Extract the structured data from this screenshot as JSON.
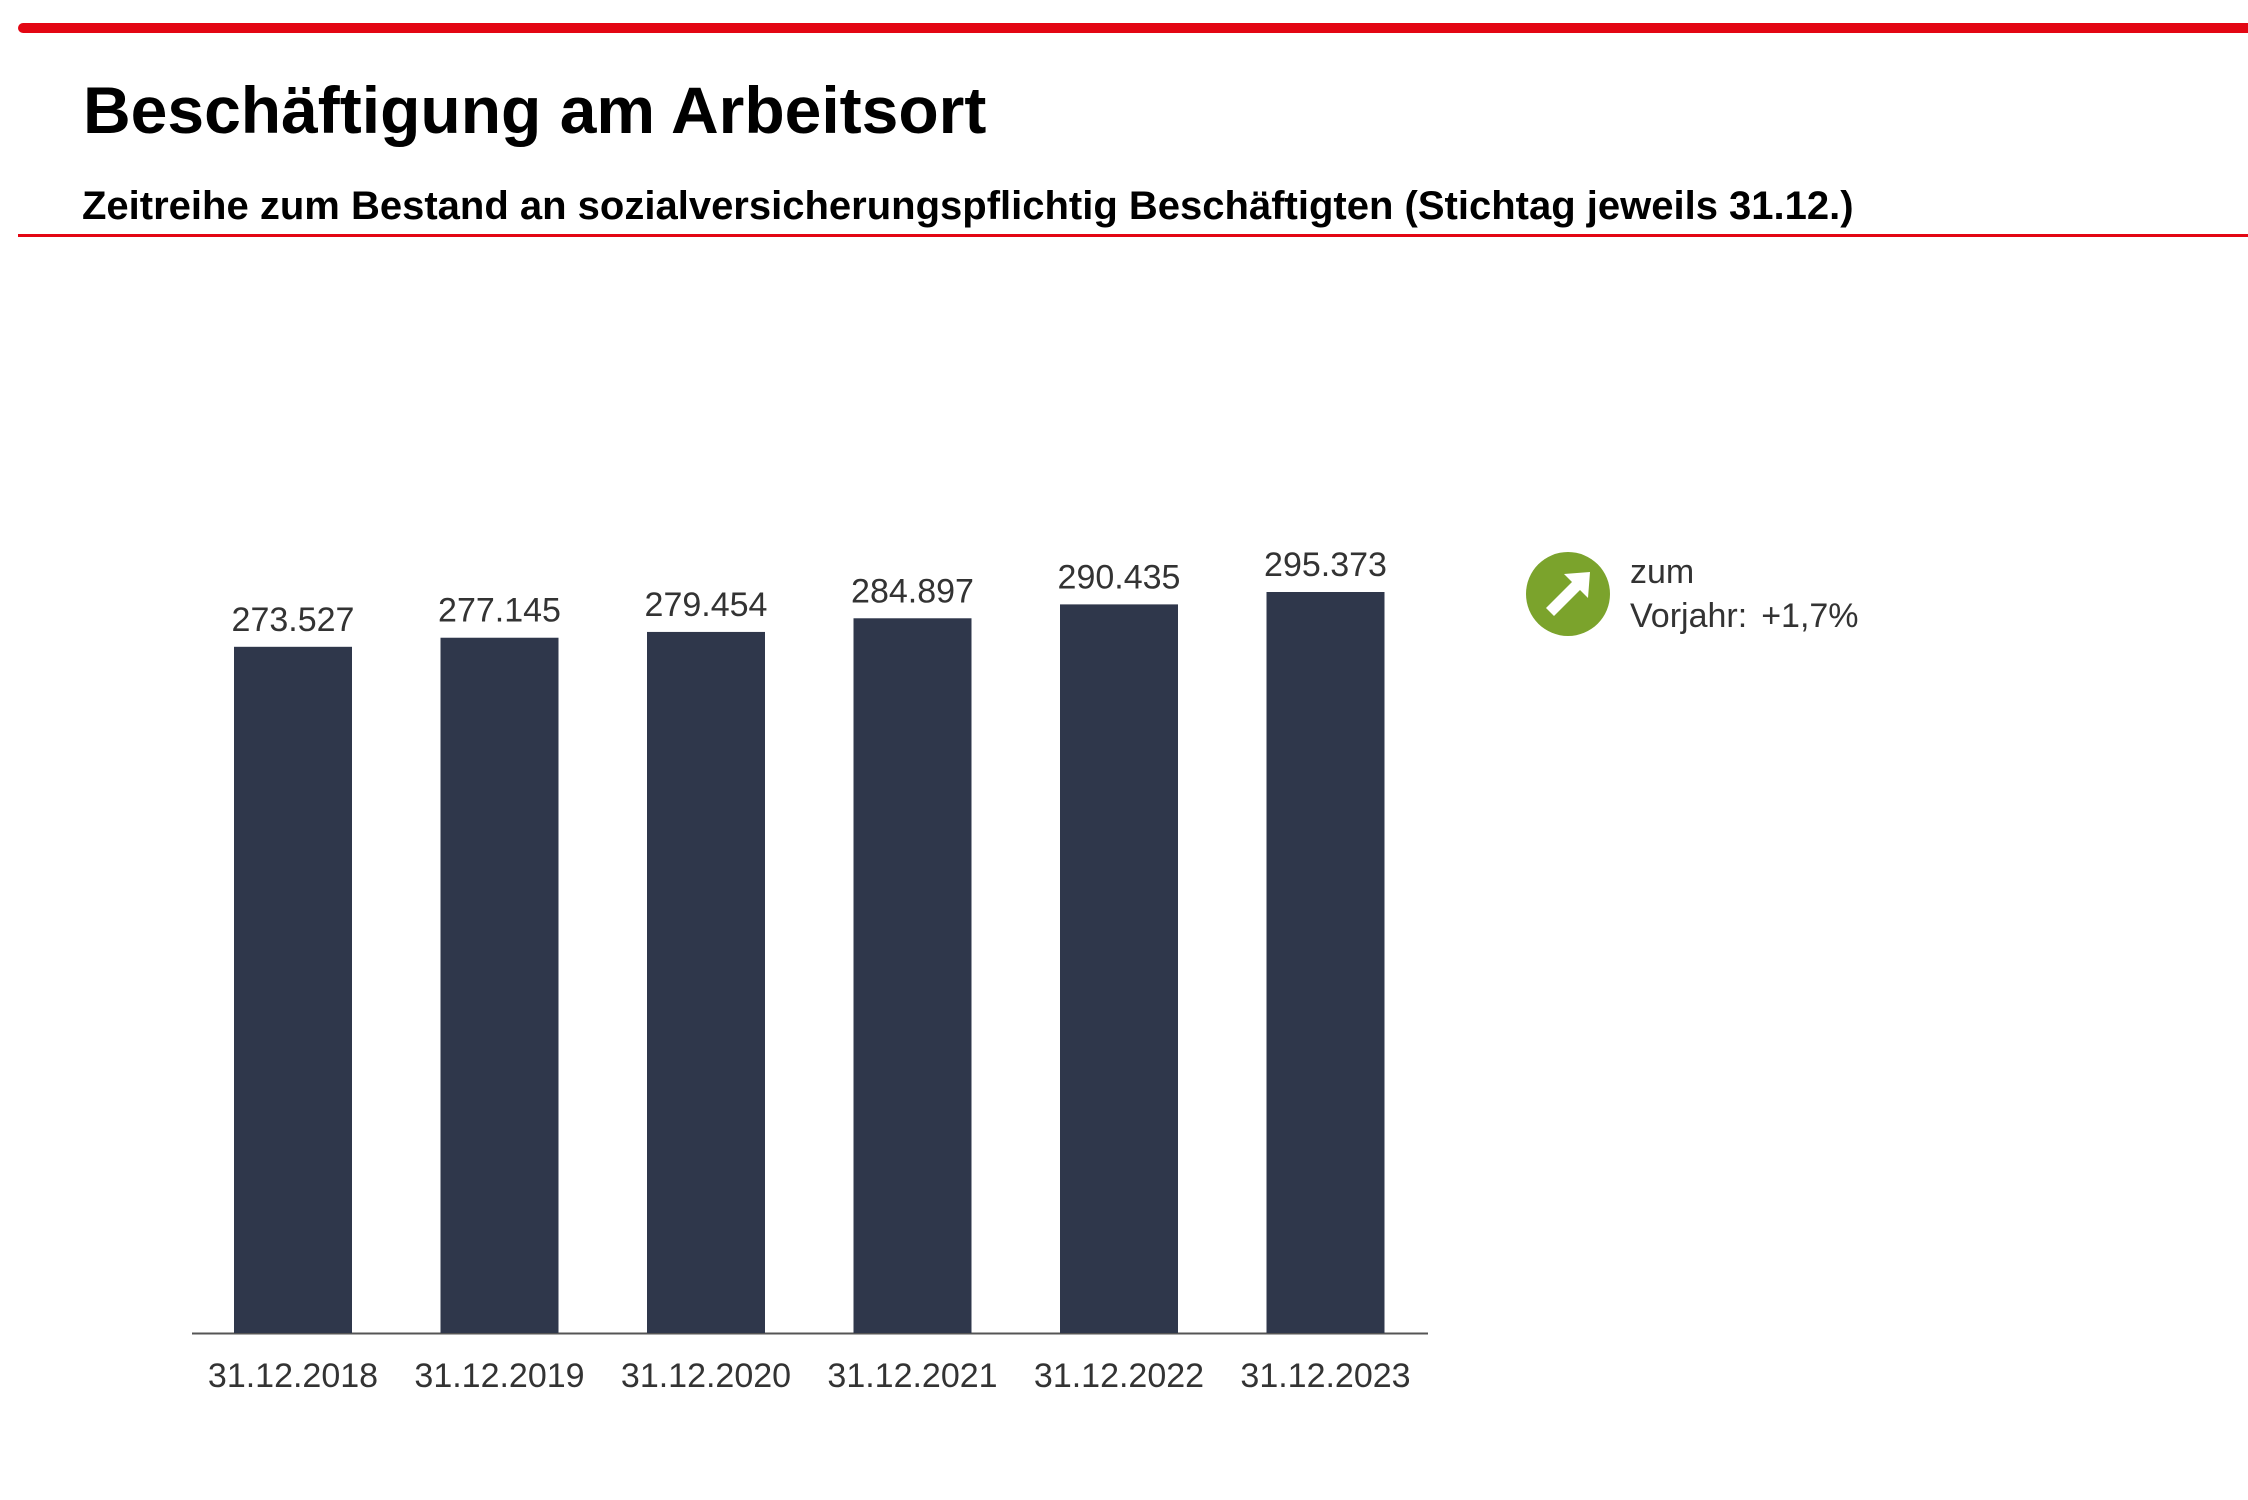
{
  "header": {
    "title": "Beschäftigung am Arbeitsort",
    "subtitle": "Zeitreihe zum Bestand an sozialversicherungspflichtig Beschäftigten (Stichtag jeweils 31.12.)"
  },
  "colors": {
    "accent": "#e30613",
    "bar": "#2f374b",
    "indicator": "#7ba32c"
  },
  "chart_data": {
    "type": "bar",
    "title": "",
    "xlabel": "",
    "ylabel": "",
    "categories": [
      "31.12.2018",
      "31.12.2019",
      "31.12.2020",
      "31.12.2021",
      "31.12.2022",
      "31.12.2023"
    ],
    "values": [
      273527,
      277145,
      279454,
      284897,
      290435,
      295373
    ],
    "value_labels": [
      "273.527",
      "277.145",
      "279.454",
      "284.897",
      "290.435",
      "295.373"
    ],
    "ylim": [
      0,
      295373
    ],
    "grid": false,
    "legend": "none"
  },
  "indicator": {
    "icon": "arrow-up-right-icon",
    "label_line1": "zum",
    "label_line2": "Vorjahr:",
    "value": "+1,7%"
  }
}
